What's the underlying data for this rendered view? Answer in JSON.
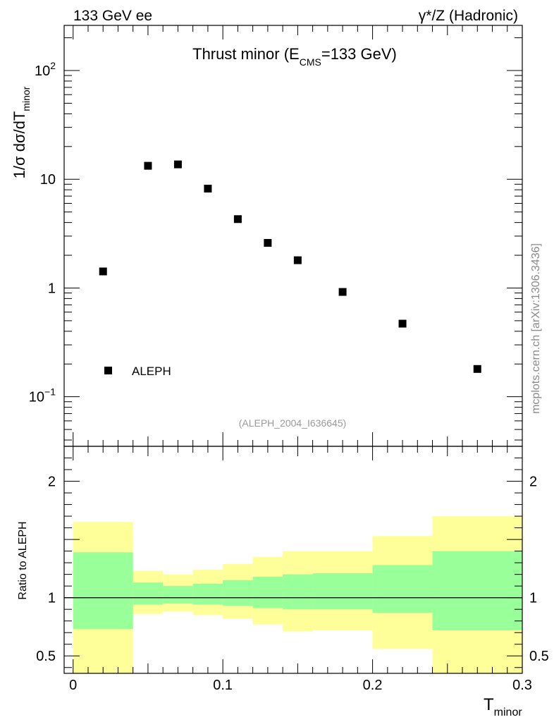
{
  "header": {
    "left": "133 GeV ee",
    "right_prefix": "γ*/Z",
    "right_suffix": "(Hadronic)"
  },
  "watermark": "mcplots.cern.ch [arXiv:1306.3436]",
  "reference_label": "(ALEPH_2004_I636645)",
  "colors": {
    "marker": "#000000",
    "band_inner": "#99ff99",
    "band_outer": "#ffff99",
    "reference_line": "#000000",
    "reference_text": "#999999",
    "watermark": "#8a8a8a"
  },
  "chart_data": [
    {
      "type": "scatter",
      "title_main": "Thrust minor (E",
      "title_sub": "CMS",
      "title_tail": "=133 GeV)",
      "ylabel_main": "1/σ  dσ/dT",
      "ylabel_sub": "minor",
      "yscale": "log",
      "ylim": [
        0.035,
        260
      ],
      "xlim": [
        -0.006,
        0.3
      ],
      "ytick_labels": [
        {
          "value": 100,
          "base": "10",
          "exp": "2"
        },
        {
          "value": 10,
          "base": "10",
          "exp": ""
        },
        {
          "value": 1,
          "base": "1",
          "exp": ""
        },
        {
          "value": 0.1,
          "base": "10",
          "exp": "−1"
        }
      ],
      "legend": {
        "label": "ALEPH",
        "placement": "bottom-left"
      },
      "series": [
        {
          "name": "ALEPH",
          "x": [
            0.02,
            0.05,
            0.07,
            0.09,
            0.11,
            0.13,
            0.15,
            0.18,
            0.22,
            0.27
          ],
          "y": [
            1.42,
            13.3,
            13.7,
            8.2,
            4.3,
            2.6,
            1.8,
            0.92,
            0.47,
            0.18
          ]
        }
      ]
    },
    {
      "type": "area",
      "ylabel": "Ratio to ALEPH",
      "xlabel_main": "T",
      "xlabel_sub": "minor",
      "ylim": [
        0.35,
        2.3
      ],
      "xlim": [
        -0.006,
        0.3
      ],
      "reference_y": 1.0,
      "ytick_labels": [
        {
          "value": 2,
          "label": "2"
        },
        {
          "value": 1,
          "label": "1"
        },
        {
          "value": 0.5,
          "label": "0.5"
        }
      ],
      "xtick_labels": [
        {
          "value": 0,
          "label": "0"
        },
        {
          "value": 0.1,
          "label": "0.1"
        },
        {
          "value": 0.2,
          "label": "0.2"
        },
        {
          "value": 0.3,
          "label": "0.3"
        }
      ],
      "bins": [
        0.0,
        0.04,
        0.06,
        0.08,
        0.1,
        0.12,
        0.14,
        0.16,
        0.2,
        0.24,
        0.3
      ],
      "inner_band": {
        "low": [
          0.73,
          0.94,
          0.95,
          0.94,
          0.93,
          0.91,
          0.9,
          0.9,
          0.87,
          0.72
        ],
        "high": [
          1.39,
          1.13,
          1.1,
          1.12,
          1.15,
          1.18,
          1.2,
          1.21,
          1.28,
          1.4
        ]
      },
      "outer_band": {
        "low": [
          0.35,
          0.86,
          0.88,
          0.85,
          0.82,
          0.77,
          0.71,
          0.72,
          0.56,
          0.35
        ],
        "high": [
          1.65,
          1.23,
          1.2,
          1.24,
          1.29,
          1.35,
          1.4,
          1.4,
          1.53,
          1.7
        ]
      }
    }
  ]
}
